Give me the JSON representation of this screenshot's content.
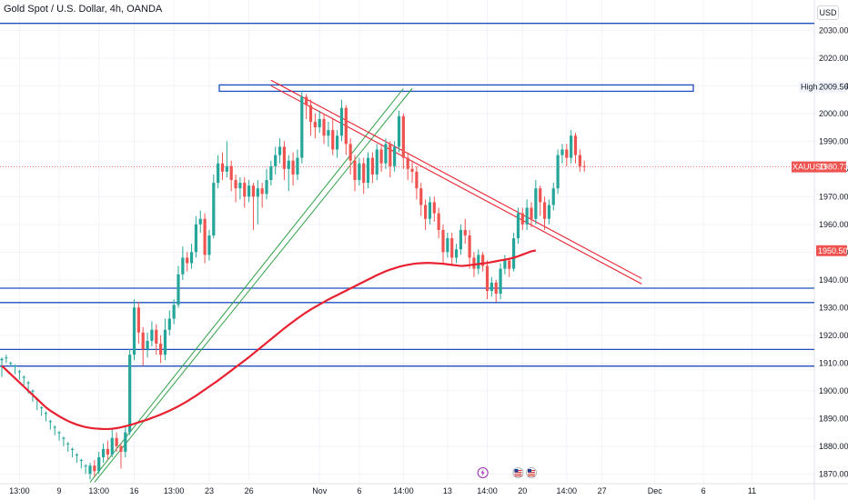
{
  "title": "Gold Spot / U.S. Dollar, 4h, OANDA",
  "currency": "USD",
  "colors": {
    "bull": "#26a69a",
    "bear": "#ef5350",
    "ma": "#e8202f",
    "zone": "#1f4fbf",
    "channel": "#2ea043",
    "trend": "#e8202f",
    "grid": "#f0f3fa"
  },
  "chart_data": {
    "type": "candlestick",
    "y_range": [
      1867,
      2035
    ],
    "price_ticks": [
      2030,
      2020,
      2010,
      2000,
      1990,
      1980,
      1970,
      1960,
      1950,
      1940,
      1930,
      1920,
      1910,
      1900,
      1890,
      1880,
      1870
    ],
    "price_tick_labels": [
      "2030.000",
      "2020.000",
      "2010.000",
      "2000.000",
      "1990.000",
      "1980.000",
      "1970.000",
      "1960.000",
      "1950.000",
      "1940.000",
      "1930.000",
      "1920.000",
      "1910.000",
      "1900.000",
      "1890.000",
      "1880.000",
      "1870.000"
    ],
    "time_labels": [
      "13:00",
      "9",
      "13:00",
      "16",
      "13:00",
      "23",
      "26",
      "Nov",
      "6",
      "14:00",
      "13",
      "14:00",
      "20",
      "14:00",
      "27",
      "Dec",
      "6",
      "11"
    ],
    "time_label_idx": [
      4,
      13,
      22,
      30,
      39,
      47,
      56,
      72,
      81,
      91,
      101,
      110,
      118,
      128,
      136,
      148,
      159,
      170
    ],
    "candles": [
      [
        1911,
        1911.5,
        1905,
        1912
      ],
      [
        1912,
        1912,
        1910,
        1913
      ],
      [
        1910,
        1910,
        1908.8,
        1910.5
      ],
      [
        1909,
        1909,
        1906,
        1909.5
      ],
      [
        1907,
        1907,
        1904,
        1907.5
      ],
      [
        1905,
        1905,
        1902,
        1905.5
      ],
      [
        1903,
        1903,
        1899,
        1903.5
      ],
      [
        1900,
        1900,
        1896,
        1900.5
      ],
      [
        1897,
        1897,
        1893,
        1897.5
      ],
      [
        1894,
        1894,
        1891,
        1894.5
      ],
      [
        1892,
        1892,
        1889,
        1892.5
      ],
      [
        1889,
        1889,
        1886,
        1889.5
      ],
      [
        1887,
        1887,
        1884,
        1887.5
      ],
      [
        1885,
        1885,
        1882,
        1885.5
      ],
      [
        1883,
        1883,
        1880,
        1883.5
      ],
      [
        1881,
        1881,
        1878,
        1881.5
      ],
      [
        1879,
        1879,
        1876,
        1879.5
      ],
      [
        1877,
        1877,
        1874,
        1877.5
      ],
      [
        1875,
        1875,
        1872,
        1875.5
      ],
      [
        1873,
        1873,
        1870,
        1873.5
      ],
      [
        1870,
        1873,
        1868,
        1874
      ],
      [
        1873,
        1871,
        1869,
        1875
      ],
      [
        1871,
        1876,
        1870,
        1878
      ],
      [
        1876,
        1879,
        1874,
        1881
      ],
      [
        1879,
        1877,
        1875,
        1882
      ],
      [
        1877,
        1883,
        1876,
        1886
      ],
      [
        1883,
        1880,
        1878,
        1885
      ],
      [
        1880,
        1878,
        1872,
        1881
      ],
      [
        1878,
        1885,
        1876,
        1887
      ],
      [
        1885,
        1913,
        1884,
        1915
      ],
      [
        1913,
        1930,
        1911,
        1933
      ],
      [
        1930,
        1921,
        1917,
        1932
      ],
      [
        1921,
        1915,
        1909,
        1923
      ],
      [
        1915,
        1918,
        1912,
        1921
      ],
      [
        1918,
        1922,
        1916,
        1925
      ],
      [
        1922,
        1917,
        1913,
        1924
      ],
      [
        1917,
        1913,
        1910,
        1920
      ],
      [
        1913,
        1922,
        1911,
        1926
      ],
      [
        1922,
        1926,
        1920,
        1929
      ],
      [
        1926,
        1931,
        1924,
        1933
      ],
      [
        1931,
        1942,
        1930,
        1945
      ],
      [
        1942,
        1948,
        1940,
        1952
      ],
      [
        1948,
        1946,
        1943,
        1950
      ],
      [
        1946,
        1950,
        1944,
        1953
      ],
      [
        1950,
        1960,
        1948,
        1963
      ],
      [
        1960,
        1962,
        1957,
        1965
      ],
      [
        1962,
        1949,
        1946,
        1964
      ],
      [
        1949,
        1956,
        1947,
        1958
      ],
      [
        1956,
        1975,
        1955,
        1978
      ],
      [
        1975,
        1982,
        1973,
        1985
      ],
      [
        1982,
        1979,
        1976,
        1986
      ],
      [
        1979,
        1981,
        1977,
        1990
      ],
      [
        1981,
        1976,
        1972,
        1983
      ],
      [
        1976,
        1973,
        1968,
        1978
      ],
      [
        1973,
        1975,
        1969,
        1977
      ],
      [
        1975,
        1970,
        1966,
        1977
      ],
      [
        1970,
        1974,
        1968,
        1976
      ],
      [
        1974,
        1970,
        1958,
        1975
      ],
      [
        1970,
        1973,
        1960,
        1976
      ],
      [
        1973,
        1971,
        1966,
        1975
      ],
      [
        1971,
        1976,
        1969,
        1980
      ],
      [
        1976,
        1981,
        1974,
        1983
      ],
      [
        1981,
        1985,
        1978,
        1988
      ],
      [
        1985,
        1988,
        1982,
        1991
      ],
      [
        1988,
        1980,
        1976,
        1990
      ],
      [
        1980,
        1983,
        1972,
        1985
      ],
      [
        1983,
        1978,
        1974,
        1986
      ],
      [
        1978,
        1984,
        1976,
        1987
      ],
      [
        1984,
        2006,
        1982,
        2008
      ],
      [
        2006,
        2003,
        1998,
        2007
      ],
      [
        2003,
        1997,
        1992,
        2005
      ],
      [
        1997,
        1995,
        1991,
        2000
      ],
      [
        1995,
        1998,
        1993,
        2001
      ],
      [
        1998,
        1992,
        1989,
        2000
      ],
      [
        1992,
        1994,
        1988,
        1997
      ],
      [
        1994,
        1987,
        1985,
        1998
      ],
      [
        1987,
        1992,
        1984,
        1994
      ],
      [
        1992,
        2002,
        1990,
        2005
      ],
      [
        2002,
        1989,
        1985,
        2003
      ],
      [
        1989,
        1983,
        1978,
        1991
      ],
      [
        1983,
        1976,
        1972,
        1985
      ],
      [
        1976,
        1982,
        1974,
        1984
      ],
      [
        1982,
        1975,
        1971,
        1984
      ],
      [
        1975,
        1984,
        1973,
        1986
      ],
      [
        1984,
        1978,
        1975,
        1986
      ],
      [
        1978,
        1987,
        1976,
        1989
      ],
      [
        1987,
        1982,
        1979,
        1989
      ],
      [
        1982,
        1989,
        1980,
        1991
      ],
      [
        1989,
        1981,
        1977,
        1990
      ],
      [
        1981,
        1988,
        1979,
        1990
      ],
      [
        1988,
        1999,
        1986,
        2001
      ],
      [
        1999,
        1984,
        1980,
        2000
      ],
      [
        1984,
        1980,
        1976,
        1986
      ],
      [
        1980,
        1979,
        1975,
        1983
      ],
      [
        1979,
        1973,
        1969,
        1981
      ],
      [
        1973,
        1967,
        1963,
        1975
      ],
      [
        1967,
        1962,
        1958,
        1969
      ],
      [
        1962,
        1968,
        1960,
        1970
      ],
      [
        1968,
        1964,
        1961,
        1970
      ],
      [
        1964,
        1958,
        1955,
        1966
      ],
      [
        1958,
        1950,
        1946,
        1960
      ],
      [
        1950,
        1955,
        1948,
        1957
      ],
      [
        1955,
        1948,
        1945,
        1957
      ],
      [
        1948,
        1951,
        1946,
        1953
      ],
      [
        1951,
        1958,
        1949,
        1960
      ],
      [
        1958,
        1956,
        1953,
        1962
      ],
      [
        1956,
        1948,
        1944,
        1958
      ],
      [
        1948,
        1944,
        1941,
        1950
      ],
      [
        1944,
        1949,
        1942,
        1951
      ],
      [
        1949,
        1945,
        1943,
        1950
      ],
      [
        1945,
        1936,
        1933,
        1947
      ],
      [
        1936,
        1939,
        1934,
        1941
      ],
      [
        1939,
        1935,
        1932,
        1940
      ],
      [
        1935,
        1944,
        1933,
        1946
      ],
      [
        1944,
        1947,
        1942,
        1949
      ],
      [
        1947,
        1944,
        1941,
        1948
      ],
      [
        1944,
        1955,
        1943,
        1957
      ],
      [
        1955,
        1964,
        1953,
        1966
      ],
      [
        1964,
        1960,
        1958,
        1966
      ],
      [
        1960,
        1966,
        1958,
        1969
      ],
      [
        1966,
        1962,
        1959,
        1968
      ],
      [
        1962,
        1973,
        1960,
        1976
      ],
      [
        1973,
        1968,
        1963,
        1974
      ],
      [
        1968,
        1962,
        1958,
        1970
      ],
      [
        1962,
        1967,
        1960,
        1969
      ],
      [
        1967,
        1973,
        1965,
        1975
      ],
      [
        1973,
        1985,
        1971,
        1987
      ],
      [
        1985,
        1987,
        1982,
        1989
      ],
      [
        1987,
        1984,
        1981,
        1989
      ],
      [
        1984,
        1992,
        1982,
        1994
      ],
      [
        1992,
        1985,
        1982,
        1993
      ],
      [
        1985,
        1981,
        1979,
        1987
      ],
      [
        1981,
        1980.73,
        1979,
        1983
      ]
    ],
    "ma": [
      1909,
      1907.5,
      1906,
      1904.5,
      1903,
      1901.5,
      1900,
      1898.5,
      1897,
      1895.5,
      1894,
      1892.8,
      1891.8,
      1890.8,
      1889.9,
      1889.1,
      1888.4,
      1887.8,
      1887.3,
      1886.9,
      1886.6,
      1886.4,
      1886.3,
      1886.2,
      1886.2,
      1886.3,
      1886.5,
      1886.8,
      1887.2,
      1887.6,
      1888.1,
      1888.6,
      1889.1,
      1889.6,
      1890.2,
      1890.8,
      1891.4,
      1892.1,
      1892.8,
      1893.6,
      1894.4,
      1895.3,
      1896.2,
      1897.2,
      1898.2,
      1899.3,
      1900.4,
      1901.5,
      1902.6,
      1903.7,
      1904.9,
      1906.1,
      1907.3,
      1908.5,
      1909.7,
      1910.9,
      1912.1,
      1913.4,
      1914.7,
      1916.0,
      1917.3,
      1918.6,
      1919.9,
      1921.2,
      1922.5,
      1923.7,
      1924.9,
      1926.1,
      1927.2,
      1928.3,
      1929.3,
      1930.2,
      1931.1,
      1932.0,
      1932.9,
      1933.7,
      1934.5,
      1935.3,
      1936.1,
      1936.9,
      1937.7,
      1938.5,
      1939.3,
      1940.1,
      1940.9,
      1941.7,
      1942.4,
      1943.1,
      1943.7,
      1944.2,
      1944.7,
      1945.1,
      1945.4,
      1945.7,
      1945.9,
      1946.0,
      1946.1,
      1946.1,
      1946.0,
      1945.9,
      1945.8,
      1945.6,
      1945.4,
      1945.2,
      1945.0,
      1945.1,
      1945.3,
      1945.5,
      1945.7,
      1945.9,
      1946.1,
      1946.4,
      1946.7,
      1947.0,
      1947.3,
      1947.6,
      1948.0,
      1948.5,
      1949.1,
      1949.7,
      1950.3,
      1950.6
    ],
    "ma_value": "1950.502",
    "last_price": "1980.730",
    "high_value": "2009.565",
    "symbol": "XAUUSD",
    "high_label": "High",
    "zones": [
      [
        2010.3,
        2008.0
      ]
    ],
    "h_levels": [
      2032.5,
      1937.0,
      1931.8,
      1914.9,
      1908.9
    ],
    "red_trendlines": [
      [
        [
          61,
          2012
        ],
        [
          145,
          1940.5
        ]
      ],
      [
        [
          61,
          2010
        ],
        [
          145,
          1938.5
        ]
      ]
    ],
    "green_channel": [
      [
        [
          20,
          1867
        ],
        [
          91,
          2009
        ]
      ],
      [
        [
          21,
          1867
        ],
        [
          93,
          2009
        ]
      ]
    ]
  },
  "events": [
    {
      "name": "lightning-event-icon",
      "idx": 109
    },
    {
      "name": "us-flag-event-icon",
      "idx": 117
    },
    {
      "name": "us-flag-event-icon",
      "idx": 120
    }
  ]
}
